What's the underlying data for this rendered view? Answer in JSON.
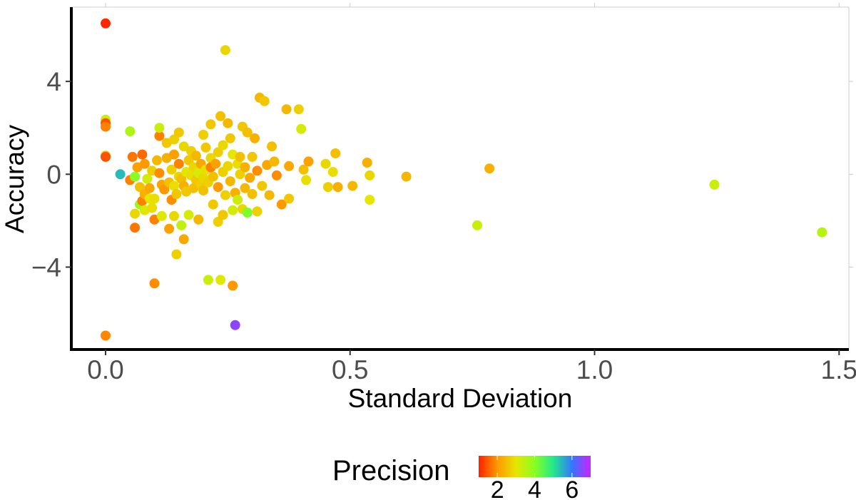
{
  "chart_data": {
    "type": "scatter",
    "xlabel": "Standard Deviation",
    "ylabel": "Accuracy",
    "xlim": [
      -0.07,
      1.52
    ],
    "ylim": [
      -7.55,
      7.2
    ],
    "x_ticks": [
      0.0,
      0.5,
      1.0,
      1.5
    ],
    "x_tick_labels": [
      "0.0",
      "0.5",
      "1.0",
      "1.5"
    ],
    "y_ticks": [
      -4,
      0,
      4
    ],
    "y_tick_labels": [
      "−4",
      "0",
      "4"
    ],
    "grid": false,
    "legend": {
      "title": "Precision",
      "position": "bottom",
      "type": "colorbar",
      "range": [
        1.0,
        7.0
      ],
      "ticks": [
        2,
        4,
        6
      ],
      "tick_labels": [
        "2",
        "4",
        "6"
      ],
      "colors": [
        "#ff2200",
        "#ff9900",
        "#e6e600",
        "#88ff22",
        "#22e88c",
        "#3377ff",
        "#cc22ff"
      ]
    },
    "color_variable": "Precision",
    "points": [
      {
        "x": 0.0,
        "y": 6.5,
        "precision": 1.05
      },
      {
        "x": 0.0,
        "y": 2.35,
        "precision": 3.3
      },
      {
        "x": 0.0,
        "y": 2.2,
        "precision": 1.4
      },
      {
        "x": 0.0,
        "y": 2.05,
        "precision": 1.8
      },
      {
        "x": 0.0,
        "y": 0.8,
        "precision": 2.6
      },
      {
        "x": 0.0,
        "y": 0.75,
        "precision": 1.4
      },
      {
        "x": 0.0,
        "y": -6.95,
        "precision": 1.85
      },
      {
        "x": 0.03,
        "y": 0.0,
        "precision": 5.4
      },
      {
        "x": 0.05,
        "y": 1.85,
        "precision": 3.6
      },
      {
        "x": 0.05,
        "y": -0.25,
        "precision": 1.8
      },
      {
        "x": 0.055,
        "y": 0.75,
        "precision": 1.7
      },
      {
        "x": 0.06,
        "y": -0.1,
        "precision": 4.0
      },
      {
        "x": 0.06,
        "y": -1.7,
        "precision": 2.8
      },
      {
        "x": 0.06,
        "y": -2.3,
        "precision": 1.7
      },
      {
        "x": 0.065,
        "y": 0.3,
        "precision": 2.1
      },
      {
        "x": 0.07,
        "y": -1.3,
        "precision": 3.8
      },
      {
        "x": 0.07,
        "y": -0.55,
        "precision": 2.5
      },
      {
        "x": 0.075,
        "y": 0.85,
        "precision": 1.6
      },
      {
        "x": 0.075,
        "y": -1.15,
        "precision": 1.8
      },
      {
        "x": 0.08,
        "y": 0.45,
        "precision": 2.0
      },
      {
        "x": 0.08,
        "y": -0.85,
        "precision": 2.3
      },
      {
        "x": 0.08,
        "y": -1.55,
        "precision": 3.1
      },
      {
        "x": 0.085,
        "y": -0.2,
        "precision": 3.2
      },
      {
        "x": 0.09,
        "y": -0.6,
        "precision": 2.2
      },
      {
        "x": 0.09,
        "y": -1.05,
        "precision": 3.0
      },
      {
        "x": 0.095,
        "y": -1.45,
        "precision": 2.9
      },
      {
        "x": 0.095,
        "y": 0.15,
        "precision": 2.7
      },
      {
        "x": 0.1,
        "y": -1.95,
        "precision": 1.8
      },
      {
        "x": 0.1,
        "y": -4.7,
        "precision": 1.9
      },
      {
        "x": 0.1,
        "y": -1.05,
        "precision": 2.9
      },
      {
        "x": 0.105,
        "y": 0.6,
        "precision": 2.4
      },
      {
        "x": 0.11,
        "y": 1.65,
        "precision": 1.8
      },
      {
        "x": 0.11,
        "y": 0.05,
        "precision": 1.9
      },
      {
        "x": 0.11,
        "y": 2.0,
        "precision": 3.3
      },
      {
        "x": 0.115,
        "y": -0.45,
        "precision": 2.2
      },
      {
        "x": 0.115,
        "y": -1.8,
        "precision": 3.1
      },
      {
        "x": 0.12,
        "y": -0.65,
        "precision": 2.0
      },
      {
        "x": 0.125,
        "y": 0.7,
        "precision": 2.3
      },
      {
        "x": 0.125,
        "y": 1.35,
        "precision": 2.6
      },
      {
        "x": 0.13,
        "y": -0.35,
        "precision": 2.5
      },
      {
        "x": 0.13,
        "y": -2.35,
        "precision": 2.1
      },
      {
        "x": 0.135,
        "y": 0.2,
        "precision": 2.7
      },
      {
        "x": 0.135,
        "y": -1.1,
        "precision": 1.9
      },
      {
        "x": 0.14,
        "y": 1.5,
        "precision": 2.7
      },
      {
        "x": 0.14,
        "y": 0.85,
        "precision": 2.1
      },
      {
        "x": 0.14,
        "y": -0.5,
        "precision": 2.9
      },
      {
        "x": 0.14,
        "y": -1.8,
        "precision": 2.8
      },
      {
        "x": 0.145,
        "y": -3.45,
        "precision": 2.7
      },
      {
        "x": 0.145,
        "y": -0.85,
        "precision": 2.6
      },
      {
        "x": 0.15,
        "y": 0.45,
        "precision": 1.8
      },
      {
        "x": 0.15,
        "y": 1.8,
        "precision": 2.6
      },
      {
        "x": 0.15,
        "y": -0.1,
        "precision": 2.8
      },
      {
        "x": 0.155,
        "y": -2.2,
        "precision": 3.4
      },
      {
        "x": 0.155,
        "y": -0.2,
        "precision": 2.5
      },
      {
        "x": 0.16,
        "y": 1.2,
        "precision": 2.8
      },
      {
        "x": 0.16,
        "y": -2.8,
        "precision": 2.2
      },
      {
        "x": 0.16,
        "y": -0.5,
        "precision": 2.3
      },
      {
        "x": 0.165,
        "y": 0.1,
        "precision": 3.0
      },
      {
        "x": 0.165,
        "y": -0.75,
        "precision": 2.6
      },
      {
        "x": 0.17,
        "y": -1.75,
        "precision": 3.2
      },
      {
        "x": 0.17,
        "y": 0.6,
        "precision": 2.6
      },
      {
        "x": 0.175,
        "y": -0.05,
        "precision": 2.9
      },
      {
        "x": 0.175,
        "y": 1.0,
        "precision": 2.7
      },
      {
        "x": 0.18,
        "y": -0.6,
        "precision": 2.5
      },
      {
        "x": 0.18,
        "y": 0.3,
        "precision": 2.8
      },
      {
        "x": 0.185,
        "y": -0.25,
        "precision": 2.6
      },
      {
        "x": 0.185,
        "y": 0.8,
        "precision": 2.4
      },
      {
        "x": 0.19,
        "y": -1.95,
        "precision": 2.4
      },
      {
        "x": 0.19,
        "y": 0.05,
        "precision": 3.2
      },
      {
        "x": 0.195,
        "y": -0.45,
        "precision": 2.7
      },
      {
        "x": 0.195,
        "y": 0.45,
        "precision": 2.2
      },
      {
        "x": 0.2,
        "y": 1.7,
        "precision": 2.7
      },
      {
        "x": 0.2,
        "y": -0.15,
        "precision": 2.8
      },
      {
        "x": 0.2,
        "y": -0.7,
        "precision": 2.5
      },
      {
        "x": 0.205,
        "y": 0.2,
        "precision": 2.9
      },
      {
        "x": 0.205,
        "y": 1.15,
        "precision": 2.6
      },
      {
        "x": 0.21,
        "y": -0.35,
        "precision": 2.7
      },
      {
        "x": 0.21,
        "y": -4.55,
        "precision": 3.3
      },
      {
        "x": 0.215,
        "y": 2.15,
        "precision": 2.6
      },
      {
        "x": 0.215,
        "y": 0.7,
        "precision": 2.8
      },
      {
        "x": 0.215,
        "y": 0.3,
        "precision": 1.8
      },
      {
        "x": 0.22,
        "y": -1.3,
        "precision": 2.6
      },
      {
        "x": 0.22,
        "y": -0.1,
        "precision": 2.5
      },
      {
        "x": 0.225,
        "y": 0.45,
        "precision": 2.1
      },
      {
        "x": 0.23,
        "y": -2.05,
        "precision": 2.7
      },
      {
        "x": 0.23,
        "y": 0.95,
        "precision": 2.7
      },
      {
        "x": 0.23,
        "y": -0.55,
        "precision": 2.0
      },
      {
        "x": 0.235,
        "y": -4.55,
        "precision": 3.1
      },
      {
        "x": 0.235,
        "y": 2.5,
        "precision": 2.5
      },
      {
        "x": 0.24,
        "y": 1.25,
        "precision": 2.8
      },
      {
        "x": 0.24,
        "y": 0.1,
        "precision": 2.7
      },
      {
        "x": 0.24,
        "y": -1.75,
        "precision": 2.6
      },
      {
        "x": 0.245,
        "y": 5.35,
        "precision": 2.8
      },
      {
        "x": 0.245,
        "y": -0.9,
        "precision": 2.7
      },
      {
        "x": 0.25,
        "y": 2.2,
        "precision": 2.4
      },
      {
        "x": 0.25,
        "y": 0.35,
        "precision": 2.8
      },
      {
        "x": 0.255,
        "y": -0.3,
        "precision": 2.4
      },
      {
        "x": 0.255,
        "y": 1.55,
        "precision": 2.6
      },
      {
        "x": 0.26,
        "y": -4.8,
        "precision": 2.0
      },
      {
        "x": 0.26,
        "y": 0.85,
        "precision": 3.0
      },
      {
        "x": 0.26,
        "y": -1.55,
        "precision": 3.2
      },
      {
        "x": 0.265,
        "y": -0.8,
        "precision": 2.3
      },
      {
        "x": 0.265,
        "y": -6.5,
        "precision": 6.6
      },
      {
        "x": 0.27,
        "y": 0.45,
        "precision": 2.9
      },
      {
        "x": 0.27,
        "y": -1.1,
        "precision": 3.3
      },
      {
        "x": 0.275,
        "y": 0.0,
        "precision": 2.7
      },
      {
        "x": 0.275,
        "y": 0.75,
        "precision": 2.5
      },
      {
        "x": 0.28,
        "y": -1.5,
        "precision": 2.8
      },
      {
        "x": 0.28,
        "y": 2.05,
        "precision": 2.6
      },
      {
        "x": 0.285,
        "y": -0.6,
        "precision": 2.4
      },
      {
        "x": 0.285,
        "y": 0.3,
        "precision": 2.3
      },
      {
        "x": 0.29,
        "y": 1.8,
        "precision": 2.5
      },
      {
        "x": 0.29,
        "y": -1.65,
        "precision": 4.1
      },
      {
        "x": 0.295,
        "y": -0.15,
        "precision": 2.2
      },
      {
        "x": 0.3,
        "y": 0.75,
        "precision": 2.6
      },
      {
        "x": 0.3,
        "y": -0.85,
        "precision": 2.5
      },
      {
        "x": 0.305,
        "y": 1.55,
        "precision": 2.3
      },
      {
        "x": 0.31,
        "y": 0.15,
        "precision": 1.9
      },
      {
        "x": 0.31,
        "y": -1.6,
        "precision": 2.7
      },
      {
        "x": 0.315,
        "y": 3.3,
        "precision": 2.4
      },
      {
        "x": 0.32,
        "y": -0.5,
        "precision": 2.6
      },
      {
        "x": 0.325,
        "y": 3.15,
        "precision": 2.6
      },
      {
        "x": 0.33,
        "y": 0.4,
        "precision": 2.2
      },
      {
        "x": 0.335,
        "y": -0.9,
        "precision": 2.4
      },
      {
        "x": 0.34,
        "y": 1.2,
        "precision": 2.5
      },
      {
        "x": 0.345,
        "y": 0.55,
        "precision": 2.4
      },
      {
        "x": 0.35,
        "y": -0.05,
        "precision": 1.9
      },
      {
        "x": 0.36,
        "y": -1.3,
        "precision": 2.0
      },
      {
        "x": 0.37,
        "y": 2.8,
        "precision": 2.4
      },
      {
        "x": 0.375,
        "y": 0.35,
        "precision": 2.2
      },
      {
        "x": 0.375,
        "y": -1.05,
        "precision": 2.6
      },
      {
        "x": 0.395,
        "y": 2.8,
        "precision": 2.7
      },
      {
        "x": 0.4,
        "y": 1.95,
        "precision": 3.2
      },
      {
        "x": 0.405,
        "y": 0.2,
        "precision": 2.5
      },
      {
        "x": 0.41,
        "y": -0.25,
        "precision": 2.9
      },
      {
        "x": 0.415,
        "y": 0.55,
        "precision": 2.1
      },
      {
        "x": 0.45,
        "y": 0.45,
        "precision": 2.8
      },
      {
        "x": 0.455,
        "y": -0.55,
        "precision": 2.7
      },
      {
        "x": 0.465,
        "y": 0.1,
        "precision": 2.9
      },
      {
        "x": 0.47,
        "y": 0.9,
        "precision": 2.5
      },
      {
        "x": 0.475,
        "y": -0.55,
        "precision": 2.3
      },
      {
        "x": 0.505,
        "y": -0.5,
        "precision": 2.4
      },
      {
        "x": 0.535,
        "y": 0.5,
        "precision": 2.3
      },
      {
        "x": 0.54,
        "y": -0.05,
        "precision": 2.8
      },
      {
        "x": 0.54,
        "y": -1.1,
        "precision": 3.0
      },
      {
        "x": 0.615,
        "y": -0.1,
        "precision": 2.4
      },
      {
        "x": 0.76,
        "y": -2.2,
        "precision": 3.3
      },
      {
        "x": 0.785,
        "y": 0.25,
        "precision": 2.3
      },
      {
        "x": 1.245,
        "y": -0.45,
        "precision": 3.3
      },
      {
        "x": 1.465,
        "y": -2.5,
        "precision": 3.5
      }
    ]
  }
}
